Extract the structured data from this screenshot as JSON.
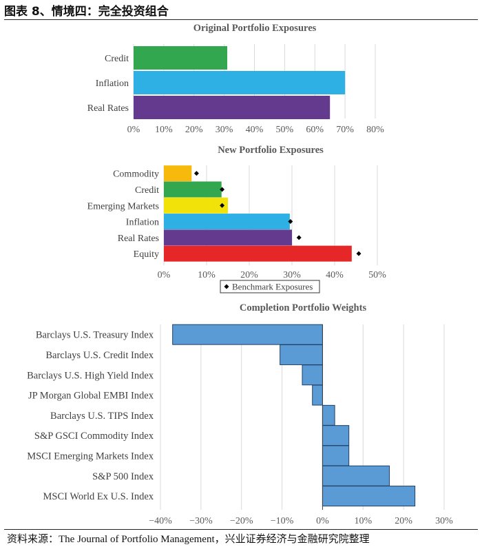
{
  "figure": {
    "title": "图表 8、情境四：完全投资组合",
    "source": "资料来源：The Journal of Portfolio Management，兴业证券经济与金融研究院整理"
  },
  "chart_data": [
    {
      "type": "bar",
      "orientation": "horizontal",
      "title": "Original Portfolio Exposures",
      "categories": [
        "Credit",
        "Inflation",
        "Real Rates"
      ],
      "values": [
        31,
        70,
        65
      ],
      "colors": [
        "#33a650",
        "#2eb0e5",
        "#643a8e"
      ],
      "xlim": [
        0,
        80
      ],
      "xticks": [
        0,
        10,
        20,
        30,
        40,
        50,
        60,
        70,
        80
      ],
      "tick_labels": [
        "0%",
        "10%",
        "20%",
        "30%",
        "40%",
        "50%",
        "60%",
        "70%",
        "80%"
      ],
      "grid": true
    },
    {
      "type": "bar",
      "orientation": "horizontal",
      "title": "New Portfolio Exposures",
      "categories": [
        "Commodity",
        "Credit",
        "Emerging Markets",
        "Inflation",
        "Real Rates",
        "Equity"
      ],
      "values": [
        6.5,
        13.5,
        15,
        29.5,
        30,
        44
      ],
      "benchmark": [
        7,
        13,
        13,
        29,
        31,
        45
      ],
      "colors": [
        "#f7b90b",
        "#33a650",
        "#f1e20a",
        "#2eb0e5",
        "#643a8e",
        "#e52727"
      ],
      "xlim": [
        0,
        50
      ],
      "xticks": [
        0,
        10,
        20,
        30,
        40,
        50
      ],
      "tick_labels": [
        "0%",
        "10%",
        "20%",
        "30%",
        "40%",
        "50%"
      ],
      "legend": {
        "label": "Benchmark Exposures",
        "position": "bottom"
      },
      "grid": true
    },
    {
      "type": "bar",
      "orientation": "horizontal",
      "title": "Completion Portfolio Weights",
      "categories": [
        "Barclays U.S. Treasury Index",
        "Barclays U.S. Credit Index",
        "Barclays U.S. High Yield Index",
        "JP Morgan Global EMBI Index",
        "Barclays U.S. TIPS Index",
        "S&P GSCI Commodity  Index",
        "MSCI Emerging Markets Index",
        "S&P 500 Index",
        "MSCI World Ex U.S. Index"
      ],
      "values": [
        -37,
        -10.5,
        -5,
        -2.5,
        3,
        6.5,
        6.5,
        16.5,
        22.8
      ],
      "color": "#5b9bd5",
      "edge_color": "#1f3f66",
      "xlim": [
        -40,
        30
      ],
      "xticks": [
        -40,
        -30,
        -20,
        -10,
        0,
        10,
        20,
        30
      ],
      "tick_labels": [
        "−40%",
        "−30%",
        "−20%",
        "−10%",
        "0%",
        "10%",
        "20%",
        "30%"
      ],
      "grid": true
    }
  ]
}
